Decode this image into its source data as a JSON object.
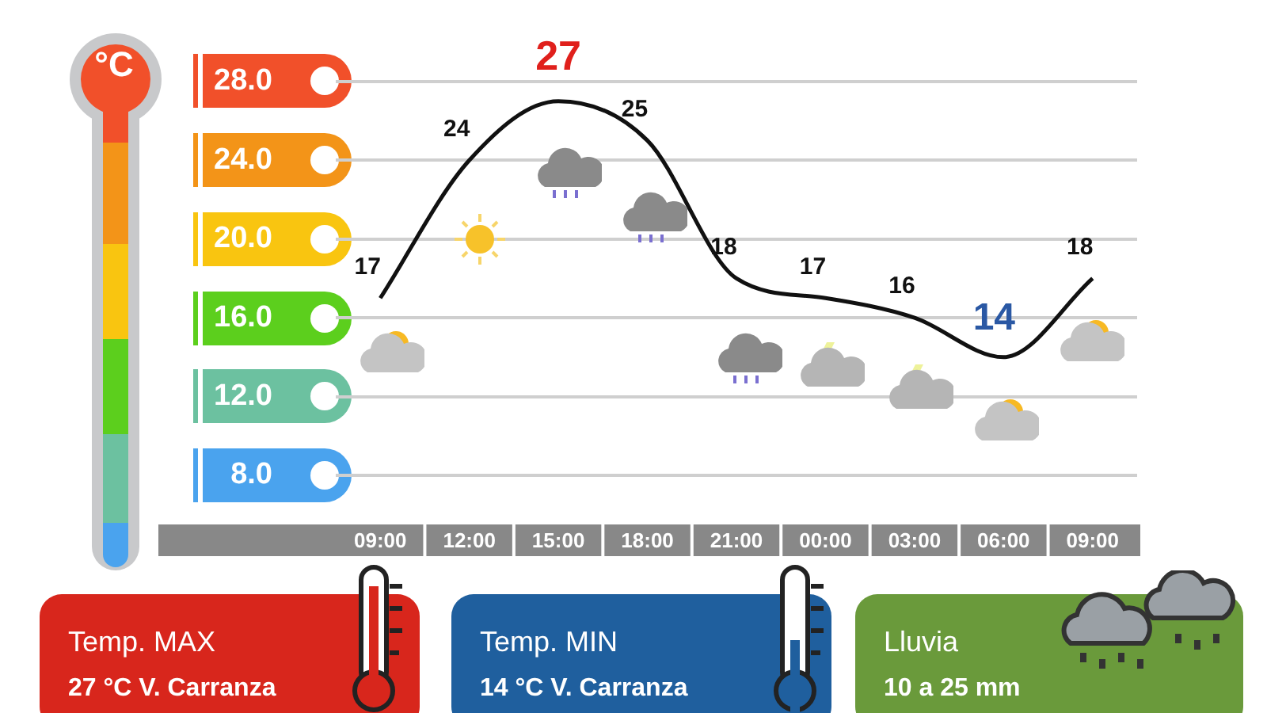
{
  "chart_data": {
    "type": "line",
    "ylabel": "°C",
    "categories": [
      "09:00",
      "12:00",
      "15:00",
      "18:00",
      "21:00",
      "00:00",
      "03:00",
      "06:00",
      "09:00"
    ],
    "series": [
      {
        "color": "#111111",
        "values": [
          17,
          24,
          27,
          25,
          18,
          17,
          16,
          14,
          18
        ]
      }
    ],
    "ylim": [
      8,
      28
    ],
    "yticks": [
      {
        "value": 8,
        "label": "8.0"
      },
      {
        "value": 12,
        "label": "12.0"
      },
      {
        "value": 16,
        "label": "16.0"
      },
      {
        "value": 20,
        "label": "20.0"
      },
      {
        "value": 24,
        "label": "24.0"
      },
      {
        "value": 28,
        "label": "28.0"
      }
    ],
    "grid": "y",
    "legend": false,
    "data_labels": true,
    "annotations": [
      "Temp. MAX",
      "27 °C V. Carranza",
      "Temp. MIN",
      "14 °C V. Carranza",
      "Lluvia",
      "10 a 25 mm"
    ]
  }
}
